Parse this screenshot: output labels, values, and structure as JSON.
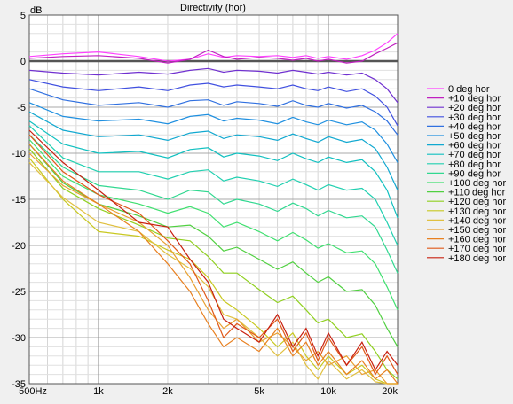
{
  "chart_data": {
    "type": "line",
    "title": "Directivity (hor)",
    "ylabel": "dB",
    "xlabel": "",
    "xscale": "log",
    "xlim": [
      500,
      20000
    ],
    "ylim": [
      -35,
      5
    ],
    "grid": true,
    "legend_position": "right",
    "x_tick_labels": [
      {
        "value": 500,
        "label": "500Hz"
      },
      {
        "value": 1000,
        "label": "1k"
      },
      {
        "value": 2000,
        "label": "2k"
      },
      {
        "value": 5000,
        "label": "5k"
      },
      {
        "value": 10000,
        "label": "10k"
      },
      {
        "value": 20000,
        "label": "20k"
      }
    ],
    "y_ticks": [
      5,
      0,
      -5,
      -10,
      -15,
      -20,
      -25,
      -30,
      -35
    ],
    "reference_line_y": 0,
    "series": [
      {
        "name": "0 deg hor",
        "color": "#ff40ff",
        "x": [
          500,
          700,
          1000,
          1500,
          2000,
          2500,
          3000,
          3500,
          4000,
          5000,
          6000,
          7000,
          8000,
          9000,
          10000,
          12000,
          14000,
          16000,
          18000,
          20000
        ],
        "y": [
          0.5,
          0.8,
          1.0,
          0.5,
          0,
          0.2,
          0.8,
          0.4,
          0.6,
          0.5,
          0.6,
          0.4,
          0.6,
          0.3,
          0.5,
          0.2,
          0.6,
          1.2,
          2.0,
          3.0
        ]
      },
      {
        "name": "+10 deg hor",
        "color": "#c020c0",
        "x": [
          500,
          700,
          1000,
          1500,
          2000,
          2500,
          3000,
          3500,
          4000,
          5000,
          6000,
          7000,
          8000,
          9000,
          10000,
          12000,
          14000,
          16000,
          18000,
          20000
        ],
        "y": [
          0.3,
          0.5,
          0.6,
          0.3,
          -0.2,
          0.2,
          1.2,
          0.5,
          0.2,
          0.4,
          0.3,
          0.1,
          0.3,
          0.0,
          0.2,
          -0.2,
          0.0,
          0.8,
          1.4,
          2.0
        ]
      },
      {
        "name": "+20 deg hor",
        "color": "#7030d0",
        "x": [
          500,
          700,
          1000,
          1500,
          2000,
          2500,
          3000,
          3500,
          4000,
          5000,
          6000,
          7000,
          8000,
          9000,
          10000,
          12000,
          14000,
          16000,
          18000,
          20000
        ],
        "y": [
          -1.0,
          -1.3,
          -1.5,
          -1.2,
          -1.4,
          -1.0,
          -0.8,
          -1.2,
          -1.0,
          -1.1,
          -1.3,
          -1.0,
          -1.2,
          -1.4,
          -1.2,
          -1.5,
          -1.3,
          -2.0,
          -3.0,
          -4.5
        ]
      },
      {
        "name": "+30 deg hor",
        "color": "#4050e0",
        "x": [
          500,
          700,
          1000,
          1500,
          2000,
          2500,
          3000,
          3500,
          4000,
          5000,
          6000,
          7000,
          8000,
          9000,
          10000,
          12000,
          14000,
          16000,
          18000,
          20000
        ],
        "y": [
          -2.0,
          -2.8,
          -3.2,
          -2.8,
          -3.2,
          -2.6,
          -2.4,
          -2.8,
          -2.6,
          -2.8,
          -3.0,
          -2.6,
          -3.0,
          -3.2,
          -2.8,
          -3.3,
          -3.0,
          -3.8,
          -5.0,
          -7.0
        ]
      },
      {
        "name": "+40 deg hor",
        "color": "#3070e0",
        "x": [
          500,
          700,
          1000,
          1500,
          2000,
          2500,
          3000,
          3500,
          4000,
          5000,
          6000,
          7000,
          8000,
          9000,
          10000,
          12000,
          14000,
          16000,
          18000,
          20000
        ],
        "y": [
          -3.0,
          -4.2,
          -4.8,
          -4.5,
          -5.0,
          -4.3,
          -4.2,
          -4.8,
          -4.4,
          -4.6,
          -4.9,
          -4.3,
          -4.8,
          -5.0,
          -4.6,
          -5.1,
          -4.8,
          -5.5,
          -6.5,
          -8.0
        ]
      },
      {
        "name": "+50 deg hor",
        "color": "#2090e0",
        "x": [
          500,
          700,
          1000,
          1500,
          2000,
          2500,
          3000,
          3500,
          4000,
          5000,
          6000,
          7000,
          8000,
          9000,
          10000,
          12000,
          14000,
          16000,
          18000,
          20000
        ],
        "y": [
          -4.5,
          -6.0,
          -6.5,
          -6.3,
          -6.8,
          -6.0,
          -5.8,
          -6.5,
          -6.2,
          -6.4,
          -6.8,
          -6.1,
          -6.6,
          -6.9,
          -6.4,
          -6.9,
          -6.6,
          -7.5,
          -9.0,
          -11.0
        ]
      },
      {
        "name": "+60 deg hor",
        "color": "#10a8d0",
        "x": [
          500,
          700,
          1000,
          1500,
          2000,
          2500,
          3000,
          3500,
          4000,
          5000,
          6000,
          7000,
          8000,
          9000,
          10000,
          12000,
          14000,
          16000,
          18000,
          20000
        ],
        "y": [
          -5.5,
          -7.5,
          -8.2,
          -8.0,
          -8.6,
          -7.8,
          -7.6,
          -8.4,
          -8.0,
          -8.2,
          -8.6,
          -7.9,
          -8.4,
          -8.8,
          -8.2,
          -8.8,
          -8.5,
          -9.5,
          -11.5,
          -14.0
        ]
      },
      {
        "name": "+70 deg hor",
        "color": "#10c0c0",
        "x": [
          500,
          700,
          1000,
          1500,
          2000,
          2500,
          3000,
          3500,
          4000,
          5000,
          6000,
          7000,
          8000,
          9000,
          10000,
          12000,
          14000,
          16000,
          18000,
          20000
        ],
        "y": [
          -6.5,
          -9.0,
          -10.0,
          -9.8,
          -10.5,
          -9.6,
          -9.4,
          -10.4,
          -10.0,
          -10.3,
          -10.8,
          -10.0,
          -10.6,
          -11.0,
          -10.4,
          -11.0,
          -10.7,
          -12.0,
          -14.0,
          -17.0
        ]
      },
      {
        "name": "+80 deg hor",
        "color": "#20d0b0",
        "x": [
          500,
          700,
          1000,
          1500,
          2000,
          2500,
          3000,
          3500,
          4000,
          5000,
          6000,
          7000,
          8000,
          9000,
          10000,
          12000,
          14000,
          16000,
          18000,
          20000
        ],
        "y": [
          -7.0,
          -10.5,
          -12.0,
          -12.0,
          -12.8,
          -12.0,
          -11.8,
          -13.0,
          -12.6,
          -13.0,
          -13.6,
          -12.8,
          -13.4,
          -14.0,
          -13.4,
          -14.0,
          -13.8,
          -15.0,
          -17.5,
          -20.0
        ]
      },
      {
        "name": "+90 deg hor",
        "color": "#30d890",
        "x": [
          500,
          700,
          1000,
          1500,
          2000,
          2500,
          3000,
          3500,
          4000,
          5000,
          6000,
          7000,
          8000,
          9000,
          10000,
          12000,
          14000,
          16000,
          18000,
          20000
        ],
        "y": [
          -8.0,
          -11.5,
          -13.5,
          -14.0,
          -15.0,
          -14.0,
          -14.2,
          -15.5,
          -15.0,
          -15.5,
          -16.3,
          -15.4,
          -16.0,
          -16.8,
          -16.2,
          -17.0,
          -16.8,
          -18.0,
          -20.5,
          -23.0
        ]
      },
      {
        "name": "+100 deg hor",
        "color": "#40e070",
        "x": [
          500,
          700,
          1000,
          1500,
          2000,
          2500,
          3000,
          3500,
          4000,
          5000,
          6000,
          7000,
          8000,
          9000,
          10000,
          12000,
          14000,
          16000,
          18000,
          20000
        ],
        "y": [
          -8.5,
          -12.5,
          -14.5,
          -15.5,
          -16.5,
          -15.8,
          -16.5,
          -18.0,
          -17.5,
          -18.5,
          -19.5,
          -18.6,
          -19.4,
          -20.3,
          -19.8,
          -20.8,
          -20.6,
          -22.0,
          -24.5,
          -27.0
        ]
      },
      {
        "name": "+110 deg hor",
        "color": "#50d040",
        "x": [
          500,
          700,
          1000,
          1500,
          2000,
          2500,
          3000,
          3500,
          4000,
          5000,
          6000,
          7000,
          8000,
          9000,
          10000,
          12000,
          14000,
          16000,
          18000,
          20000
        ],
        "y": [
          -9.0,
          -13.2,
          -15.5,
          -16.8,
          -18.0,
          -17.8,
          -19.0,
          -20.6,
          -20.2,
          -21.5,
          -22.6,
          -21.8,
          -23.0,
          -24.0,
          -23.4,
          -25.0,
          -24.8,
          -26.5,
          -29.0,
          -31.0
        ]
      },
      {
        "name": "+120 deg hor",
        "color": "#90d020",
        "x": [
          500,
          700,
          1000,
          1500,
          2000,
          2500,
          3000,
          3500,
          4000,
          5000,
          6000,
          7000,
          8000,
          9000,
          10000,
          12000,
          14000,
          16000,
          18000,
          20000
        ],
        "y": [
          -9.5,
          -13.8,
          -16.0,
          -17.8,
          -19.2,
          -19.5,
          -21.2,
          -23.0,
          -23.0,
          -24.8,
          -26.2,
          -25.5,
          -27.0,
          -28.4,
          -28.0,
          -30.0,
          -29.6,
          -31.5,
          -33.5,
          -34.5
        ]
      },
      {
        "name": "+130 deg hor",
        "color": "#c8c820",
        "x": [
          500,
          700,
          1000,
          1500,
          2000,
          2500,
          3000,
          3500,
          4000,
          5000,
          6000,
          7000,
          8000,
          9000,
          10000,
          12000,
          14000,
          16000,
          18000,
          20000
        ],
        "y": [
          -10.5,
          -15.0,
          -18.5,
          -19.0,
          -20.5,
          -21.5,
          -23.5,
          -26.0,
          -27.0,
          -29.0,
          -31.0,
          -29.5,
          -32.0,
          -33.5,
          -32.0,
          -34.0,
          -33.0,
          -34.5,
          -35.0,
          -35.0
        ]
      },
      {
        "name": "+140 deg hor",
        "color": "#e0c040",
        "x": [
          500,
          700,
          1000,
          1500,
          2000,
          2500,
          3000,
          3500,
          4000,
          5000,
          6000,
          7000,
          8000,
          9000,
          10000,
          12000,
          14000,
          16000,
          18000,
          20000
        ],
        "y": [
          -11.0,
          -14.8,
          -17.5,
          -18.5,
          -21.0,
          -22.5,
          -24.5,
          -27.5,
          -28.0,
          -30.0,
          -32.0,
          -30.5,
          -33.0,
          -34.5,
          -32.5,
          -34.5,
          -33.5,
          -34.8,
          -35.0,
          -35.0
        ]
      },
      {
        "name": "+150 deg hor",
        "color": "#e8a030",
        "x": [
          500,
          700,
          1000,
          1500,
          2000,
          2500,
          3000,
          3500,
          4000,
          5000,
          6000,
          7000,
          8000,
          9000,
          10000,
          12000,
          14000,
          16000,
          18000,
          20000
        ],
        "y": [
          -10.0,
          -13.5,
          -15.5,
          -17.5,
          -20.0,
          -23.5,
          -27.0,
          -29.0,
          -28.0,
          -30.5,
          -29.5,
          -31.0,
          -32.5,
          -31.5,
          -33.0,
          -32.0,
          -34.0,
          -33.5,
          -35.0,
          -35.0
        ]
      },
      {
        "name": "+160 deg hor",
        "color": "#e88020",
        "x": [
          500,
          700,
          1000,
          1500,
          2000,
          2500,
          3000,
          3500,
          4000,
          5000,
          6000,
          7000,
          8000,
          9000,
          10000,
          12000,
          14000,
          16000,
          18000,
          20000
        ],
        "y": [
          -9.0,
          -13.0,
          -15.5,
          -18.5,
          -22.0,
          -25.0,
          -28.5,
          -31.0,
          -30.0,
          -31.5,
          -29.0,
          -32.0,
          -30.5,
          -33.0,
          -31.5,
          -34.0,
          -32.5,
          -34.5,
          -33.5,
          -35.0
        ]
      },
      {
        "name": "+170 deg hor",
        "color": "#e05818",
        "x": [
          500,
          700,
          1000,
          1500,
          2000,
          2500,
          3000,
          3500,
          4000,
          5000,
          6000,
          7000,
          8000,
          9000,
          10000,
          12000,
          14000,
          16000,
          18000,
          20000
        ],
        "y": [
          -8.0,
          -12.0,
          -14.5,
          -16.5,
          -19.5,
          -22.0,
          -26.0,
          -30.0,
          -28.5,
          -30.0,
          -28.0,
          -31.5,
          -29.5,
          -32.5,
          -30.0,
          -33.0,
          -31.0,
          -34.0,
          -32.0,
          -34.0
        ]
      },
      {
        "name": "+180 deg hor",
        "color": "#c82010",
        "x": [
          500,
          700,
          1000,
          1500,
          2000,
          2500,
          3000,
          3500,
          4000,
          5000,
          6000,
          7000,
          8000,
          9000,
          10000,
          12000,
          14000,
          16000,
          18000,
          20000
        ],
        "y": [
          -7.5,
          -11.0,
          -14.0,
          -17.5,
          -18.0,
          -21.5,
          -24.0,
          -28.0,
          -29.0,
          -30.5,
          -27.5,
          -31.0,
          -29.0,
          -32.0,
          -29.5,
          -33.0,
          -30.5,
          -33.5,
          -31.5,
          -33.0
        ]
      }
    ]
  }
}
